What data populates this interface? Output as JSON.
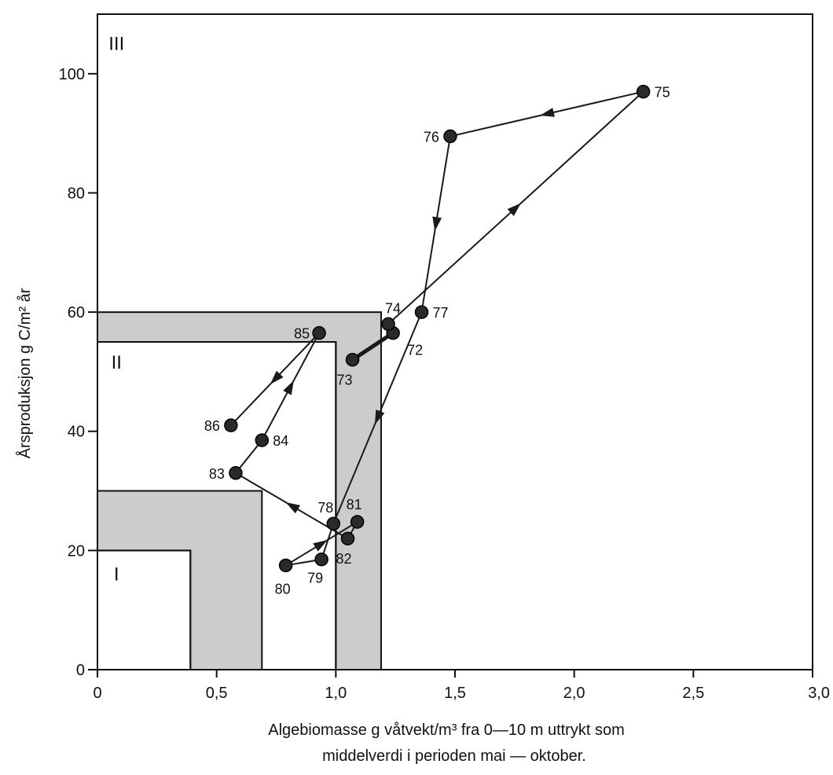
{
  "chart_data": {
    "type": "scatter",
    "title": "",
    "xlabel_lines": [
      "Algebiomasse g våtvekt/m³  fra 0—10 m uttrykt som",
      "middelverdi i perioden mai — oktober."
    ],
    "ylabel": "Årsproduksjon g C/m² år",
    "xlim": [
      0,
      3.0
    ],
    "ylim": [
      0,
      110
    ],
    "x_ticks": [
      0,
      0.5,
      1.0,
      1.5,
      2.0,
      2.5,
      3.0
    ],
    "x_tick_labels": [
      "0",
      "0,5",
      "1,0",
      "1,5",
      "2,0",
      "2,5",
      "3,0"
    ],
    "y_ticks": [
      0,
      20,
      40,
      60,
      80,
      100
    ],
    "y_tick_labels": [
      "0",
      "20",
      "40",
      "60",
      "80",
      "100"
    ],
    "regions": [
      {
        "label": "I",
        "label_x": 0.08,
        "label_y": 15,
        "x_max": 0.39,
        "y_max": 20
      },
      {
        "label": "II",
        "label_x": 0.08,
        "label_y": 50.5,
        "x_max": 1.0,
        "y_max": 55
      },
      {
        "label": "III",
        "label_x": 0.08,
        "label_y": 104,
        "x_max": 3.0,
        "y_max": 110
      }
    ],
    "transition_bands": [
      {
        "inner_x": 0.39,
        "outer_x": 0.69,
        "inner_y": 20,
        "outer_y": 30
      },
      {
        "inner_x": 1.0,
        "outer_x": 1.19,
        "inner_y": 55,
        "outer_y": 60
      }
    ],
    "points": [
      {
        "label": "72",
        "x": 1.24,
        "y": 56.5
      },
      {
        "label": "73",
        "x": 1.07,
        "y": 52
      },
      {
        "label": "74",
        "x": 1.22,
        "y": 58
      },
      {
        "label": "75",
        "x": 2.29,
        "y": 97
      },
      {
        "label": "76",
        "x": 1.48,
        "y": 89.5
      },
      {
        "label": "77",
        "x": 1.36,
        "y": 60
      },
      {
        "label": "78",
        "x": 0.99,
        "y": 24.5
      },
      {
        "label": "79",
        "x": 0.94,
        "y": 18.5
      },
      {
        "label": "80",
        "x": 0.79,
        "y": 17.5
      },
      {
        "label": "81",
        "x": 1.09,
        "y": 24.8
      },
      {
        "label": "82",
        "x": 1.05,
        "y": 22
      },
      {
        "label": "83",
        "x": 0.58,
        "y": 33
      },
      {
        "label": "84",
        "x": 0.69,
        "y": 38.5
      },
      {
        "label": "85",
        "x": 0.93,
        "y": 56.5
      },
      {
        "label": "86",
        "x": 0.56,
        "y": 41
      }
    ],
    "path_order": [
      "73",
      "72",
      "74",
      "75",
      "76",
      "77",
      "78",
      "79",
      "80",
      "81",
      "82",
      "83",
      "84",
      "85",
      "86"
    ],
    "colors": {
      "band": "#cccccc",
      "line": "#1a1a1a",
      "point": "#2a2a2a"
    }
  }
}
